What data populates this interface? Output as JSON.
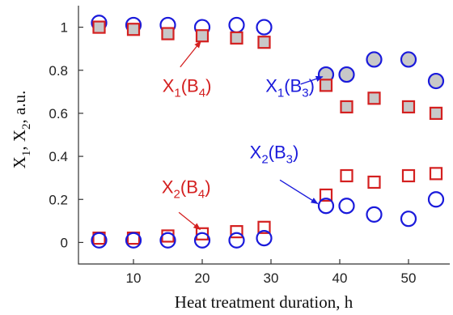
{
  "chart_data": {
    "type": "scatter",
    "title": "",
    "xlabel": "Heat treatment duration, h",
    "ylabel_parts": [
      "X",
      "1",
      ", X",
      "2",
      ", a.u."
    ],
    "xlim": [
      2,
      56
    ],
    "ylim": [
      -0.1,
      1.1
    ],
    "xticks": [
      10,
      20,
      30,
      40,
      50
    ],
    "yticks": [
      0,
      0.2,
      0.4,
      0.6,
      0.8,
      1
    ],
    "grid": false,
    "colors": {
      "blue": "#1a1adb",
      "red": "#d42020",
      "gray_fill": "#c8c8c8"
    },
    "series": [
      {
        "marker": "circle",
        "stroke": "blue",
        "filled": false,
        "x": [
          5,
          10,
          15,
          20,
          25,
          29
        ],
        "y": [
          1.02,
          1.01,
          1.01,
          1.0,
          1.01,
          1.0
        ]
      },
      {
        "marker": "circle",
        "stroke": "blue",
        "filled": true,
        "x": [
          38,
          41,
          45,
          50,
          54
        ],
        "y": [
          0.78,
          0.78,
          0.85,
          0.85,
          0.75
        ]
      },
      {
        "marker": "square",
        "stroke": "red",
        "filled": true,
        "x": [
          5,
          10,
          15,
          20,
          25,
          29,
          38,
          41,
          45,
          50,
          54
        ],
        "y": [
          1.0,
          0.99,
          0.97,
          0.96,
          0.95,
          0.93,
          0.73,
          0.63,
          0.67,
          0.63,
          0.6
        ]
      },
      {
        "marker": "square",
        "stroke": "red",
        "filled": false,
        "x": [
          5,
          10,
          15,
          20,
          25,
          29,
          38,
          41,
          45,
          50,
          54
        ],
        "y": [
          0.02,
          0.02,
          0.03,
          0.04,
          0.05,
          0.07,
          0.22,
          0.31,
          0.28,
          0.31,
          0.32
        ]
      },
      {
        "marker": "circle",
        "stroke": "blue",
        "filled": false,
        "x": [
          5,
          10,
          15,
          20,
          25,
          29,
          38,
          41,
          45,
          50,
          54
        ],
        "y": [
          0.01,
          0.01,
          0.01,
          0.01,
          0.01,
          0.02,
          0.17,
          0.17,
          0.13,
          0.11,
          0.2
        ]
      }
    ],
    "annotations": [
      {
        "id": "x1b4",
        "color": "red",
        "main": "X",
        "sub1": "1",
        "mid": "(B",
        "sub2": "4",
        "end": ")",
        "text_at": [
          14.2,
          0.7
        ],
        "arrow_from": [
          16.8,
          0.815
        ],
        "arrow_to": [
          19.8,
          0.935
        ]
      },
      {
        "id": "x1b3",
        "color": "blue",
        "main": "X",
        "sub1": "1",
        "mid": "(B",
        "sub2": "3",
        "end": ")",
        "text_at": [
          29.2,
          0.7
        ],
        "arrow_from": [
          34.3,
          0.735
        ],
        "arrow_to": [
          37.5,
          0.77
        ]
      },
      {
        "id": "x2b4",
        "color": "red",
        "main": "X",
        "sub1": "2",
        "mid": "(B",
        "sub2": "4",
        "end": ")",
        "text_at": [
          14.1,
          0.23
        ],
        "arrow_from": [
          16.6,
          0.14
        ],
        "arrow_to": [
          19.7,
          0.06
        ]
      },
      {
        "id": "x2b3",
        "color": "blue",
        "main": "X",
        "sub1": "2",
        "mid": "(B",
        "sub2": "3",
        "end": ")",
        "text_at": [
          26.9,
          0.39
        ],
        "arrow_from": [
          31.3,
          0.29
        ],
        "arrow_to": [
          36.8,
          0.18
        ]
      }
    ]
  }
}
